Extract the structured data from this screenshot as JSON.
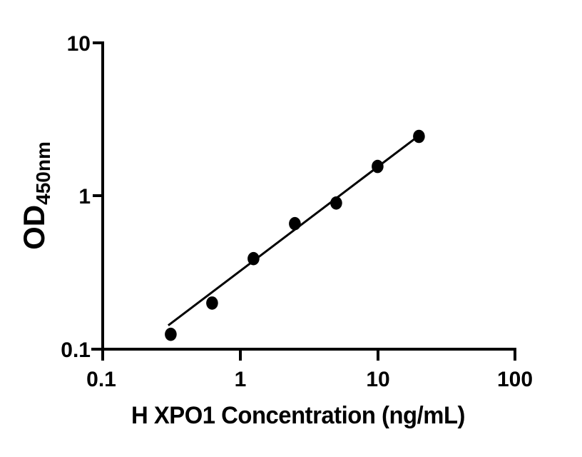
{
  "figure": {
    "background_color": "#ffffff",
    "axis_color": "#000000"
  },
  "chart_data": {
    "type": "scatter",
    "title": "",
    "xlabel": "H XPO1 Concentration (ng/mL)",
    "ylabel": "OD",
    "ylabel_subscript": "450nm",
    "x_scale": "log",
    "y_scale": "log",
    "xlim": [
      0.1,
      100
    ],
    "ylim": [
      0.1,
      10
    ],
    "x_ticks": [
      0.1,
      1,
      10,
      100
    ],
    "x_tick_labels": [
      "0.1",
      "1",
      "10",
      "100"
    ],
    "y_ticks": [
      10,
      1,
      0.1
    ],
    "y_tick_labels": [
      "10",
      "1",
      "0.1"
    ],
    "grid": false,
    "legend": null,
    "marker_color": "#000000",
    "marker_shape": "filled-circle",
    "line_color": "#000000",
    "points": [
      {
        "x": 0.3125,
        "y": 0.125
      },
      {
        "x": 0.625,
        "y": 0.2
      },
      {
        "x": 1.25,
        "y": 0.39
      },
      {
        "x": 2.5,
        "y": 0.66
      },
      {
        "x": 5,
        "y": 0.9
      },
      {
        "x": 10,
        "y": 1.56
      },
      {
        "x": 20,
        "y": 2.45
      }
    ],
    "fit_line": {
      "x1": 0.3,
      "y1": 0.143,
      "x2": 20,
      "y2": 2.48
    }
  }
}
